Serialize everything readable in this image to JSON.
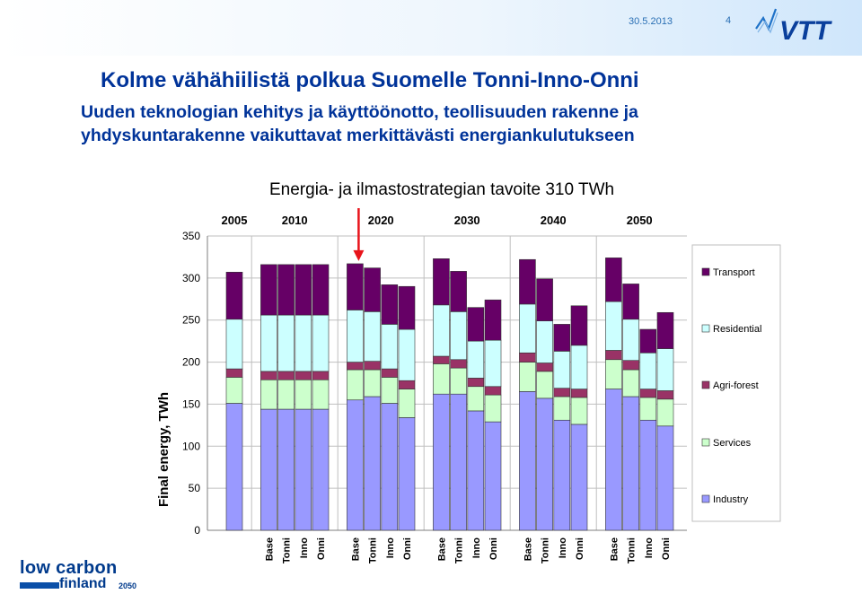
{
  "header": {
    "date": "30.5.2013",
    "page_number": "4",
    "vtt_logo_text": "VTT"
  },
  "slide": {
    "title": "Kolme vähähiilistä polkua Suomelle Tonni-Inno-Onni",
    "subtitle_lines": [
      "Uuden teknologian kehitys ja käyttöönotto, teollisuuden rakenne ja",
      "yhdyskuntarakenne vaikuttavat merkittävästi energiankulutukseen"
    ],
    "chart_title": "Energia- ja ilmastostrategian tavoite 310 TWh"
  },
  "footer_logo": {
    "line1": "low carbon",
    "line2": "finland",
    "year": "2050"
  },
  "colors": {
    "industry": "#9999ff",
    "services": "#ccffcc",
    "agri_forest": "#993366",
    "residential": "#ccffff",
    "transport": "#660066",
    "title_blue": "#003399",
    "arrow": "#e8141b"
  },
  "chart_data": {
    "type": "bar",
    "stacked": true,
    "title": "Energia- ja ilmastostrategian tavoite 310 TWh",
    "ylabel": "Final energy, TWh",
    "xlabel": "",
    "ylim": [
      0,
      350
    ],
    "yticks": [
      0,
      50,
      100,
      150,
      200,
      250,
      300,
      350
    ],
    "year_groups": [
      {
        "year": "2005",
        "bars": [
          0
        ]
      },
      {
        "year": "2010",
        "bars": [
          1,
          2,
          3,
          4
        ]
      },
      {
        "year": "2020",
        "bars": [
          5,
          6,
          7,
          8
        ]
      },
      {
        "year": "2030",
        "bars": [
          9,
          10,
          11,
          12
        ]
      },
      {
        "year": "2040",
        "bars": [
          13,
          14,
          15,
          16
        ]
      },
      {
        "year": "2050",
        "bars": [
          17,
          18,
          19,
          20
        ]
      }
    ],
    "categories": [
      "",
      "Base",
      "Tonni",
      "Inno",
      "Onni",
      "Base",
      "Tonni",
      "Inno",
      "Onni",
      "Base",
      "Tonni",
      "Inno",
      "Onni",
      "Base",
      "Tonni",
      "Inno",
      "Onni",
      "Base",
      "Tonni",
      "Inno",
      "Onni"
    ],
    "series": [
      {
        "name": "Industry",
        "values": [
          151,
          144,
          144,
          144,
          144,
          155,
          159,
          151,
          134,
          162,
          162,
          142,
          129,
          165,
          157,
          131,
          126,
          168,
          159,
          131,
          124
        ]
      },
      {
        "name": "Services",
        "values": [
          31,
          35,
          35,
          35,
          35,
          36,
          32,
          31,
          34,
          36,
          31,
          29,
          32,
          35,
          32,
          28,
          32,
          35,
          32,
          27,
          32
        ]
      },
      {
        "name": "Agri-forest",
        "values": [
          10,
          10,
          10,
          10,
          10,
          9,
          10,
          10,
          10,
          9,
          10,
          10,
          10,
          11,
          10,
          10,
          10,
          11,
          11,
          10,
          10
        ]
      },
      {
        "name": "Residential",
        "values": [
          59,
          67,
          67,
          67,
          67,
          62,
          59,
          53,
          61,
          61,
          57,
          44,
          55,
          58,
          50,
          44,
          52,
          58,
          49,
          43,
          50
        ]
      },
      {
        "name": "Transport",
        "values": [
          56,
          60,
          60,
          60,
          60,
          55,
          52,
          47,
          51,
          55,
          48,
          40,
          48,
          53,
          50,
          32,
          47,
          52,
          42,
          28,
          43
        ]
      }
    ],
    "legend": {
      "placement": "right",
      "order": [
        "Transport",
        "Residential",
        "Agri-forest",
        "Services",
        "Industry"
      ]
    },
    "annotation": {
      "type": "arrow",
      "points_to_bar": 5
    }
  }
}
